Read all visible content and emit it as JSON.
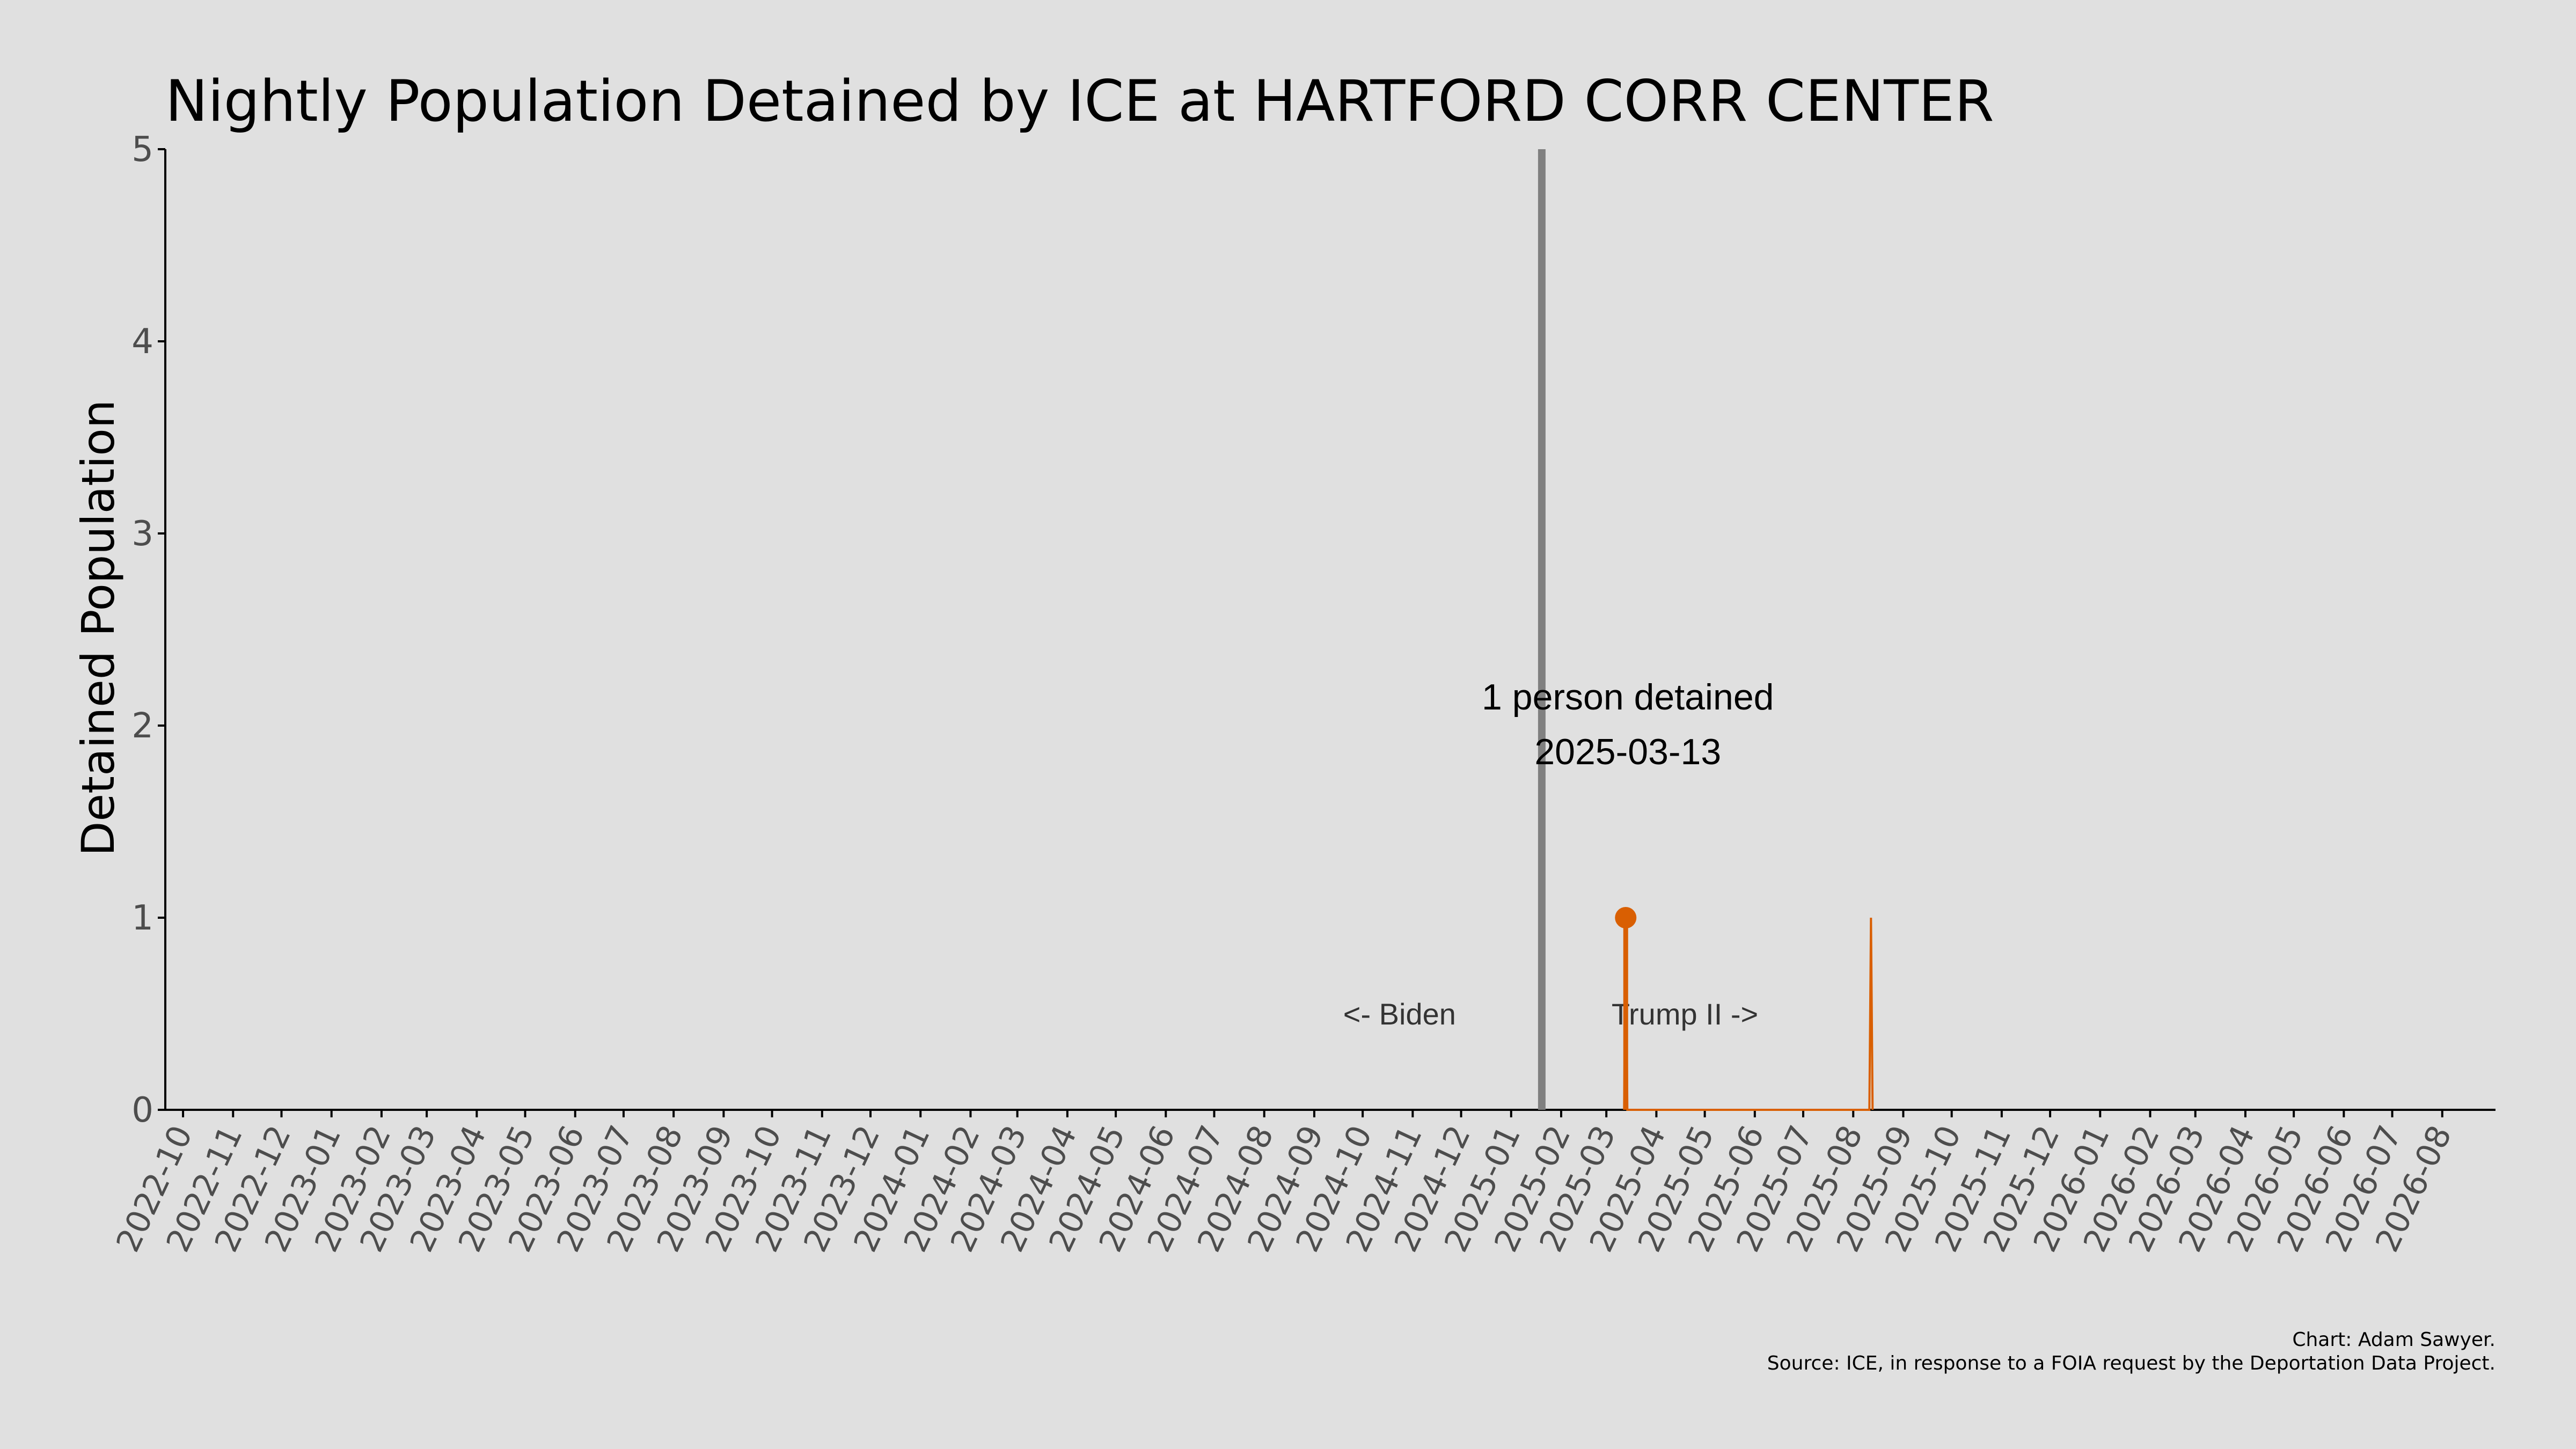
{
  "colors": {
    "background": "#e0e0e0",
    "accent": "#d95f02",
    "inauguration_line": "#808080",
    "axis": "#000000",
    "tick_label": "#4d4d4d",
    "text": "#000000"
  },
  "chart_data": {
    "type": "line",
    "title": "Nightly Population Detained by ICE at HARTFORD CORR CENTER",
    "xlabel": "",
    "ylabel": "Detained Population",
    "x_axis": {
      "type": "date",
      "range": [
        "2022-09-20",
        "2026-09-03"
      ],
      "tick_labels": [
        "2022-10",
        "2022-11",
        "2022-12",
        "2023-01",
        "2023-02",
        "2023-03",
        "2023-04",
        "2023-05",
        "2023-06",
        "2023-07",
        "2023-08",
        "2023-09",
        "2023-10",
        "2023-11",
        "2023-12",
        "2024-01",
        "2024-02",
        "2024-03",
        "2024-04",
        "2024-05",
        "2024-06",
        "2024-07",
        "2024-08",
        "2024-09",
        "2024-10",
        "2024-11",
        "2024-12",
        "2025-01",
        "2025-02",
        "2025-03",
        "2025-04",
        "2025-05",
        "2025-06",
        "2025-07",
        "2025-08",
        "2025-09",
        "2025-10",
        "2025-11",
        "2025-12",
        "2026-01",
        "2026-02",
        "2026-03",
        "2026-04",
        "2026-05",
        "2026-06",
        "2026-07",
        "2026-08"
      ]
    },
    "y_axis": {
      "range": [
        0,
        5
      ],
      "ticks": [
        0,
        1,
        2,
        3,
        4,
        5
      ]
    },
    "grid": false,
    "series": [
      {
        "points": [
          {
            "x": "2025-03-12",
            "y": 0
          },
          {
            "x": "2025-03-13",
            "y": 1
          },
          {
            "x": "2025-03-14",
            "y": 0
          },
          {
            "x": "2025-08-11",
            "y": 0
          },
          {
            "x": "2025-08-12",
            "y": 1
          },
          {
            "x": "2025-08-13",
            "y": 0
          }
        ]
      }
    ],
    "highlight": {
      "x": "2025-03-13",
      "y": 1
    },
    "inauguration": {
      "x": "2025-01-20"
    },
    "annotations": {
      "peak_line1": "1 person detained",
      "peak_line2": "2025-03-13",
      "left_era": "<- Biden",
      "right_era": "Trump II ->"
    },
    "caption_line1": "Chart: Adam Sawyer.",
    "caption_line2": "Source: ICE, in response to a FOIA request by the Deportation Data Project."
  }
}
